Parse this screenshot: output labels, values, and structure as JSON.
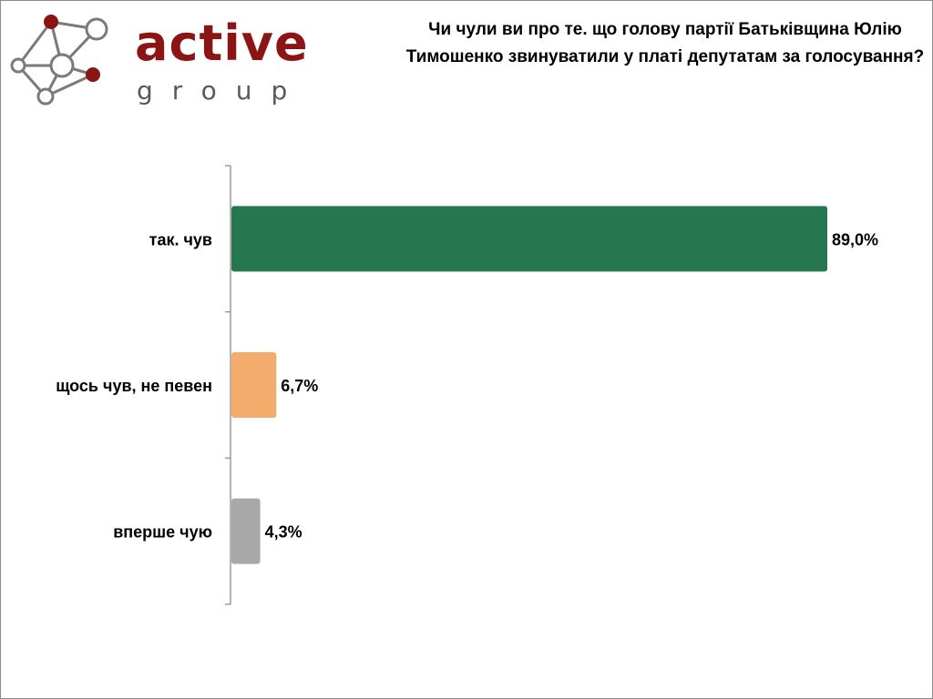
{
  "logo": {
    "word": "active",
    "sub": "group",
    "colors": {
      "dark_red": "#8b1515",
      "gray": "#5a5a5a"
    }
  },
  "title": "Чи чули ви про те. що голову партії Батьківщина Юлію Тимошенко звинуватили у платі депутатам за голосування?",
  "chart_data": {
    "type": "bar",
    "orientation": "horizontal",
    "title": "Чи чули ви про те. що голову партії Батьківщина Юлію Тимошенко звинуватили у платі депутатам за голосування?",
    "categories": [
      "так. чув",
      "щось чув, не певен",
      "вперше чую"
    ],
    "values": [
      89.0,
      6.7,
      4.3
    ],
    "value_labels": [
      "89,0%",
      "6,7%",
      "4,3%"
    ],
    "colors": [
      "#267650",
      "#f4ac6c",
      "#a9a9a9"
    ],
    "xlim": [
      0,
      100
    ],
    "grid": false,
    "legend": "none"
  }
}
